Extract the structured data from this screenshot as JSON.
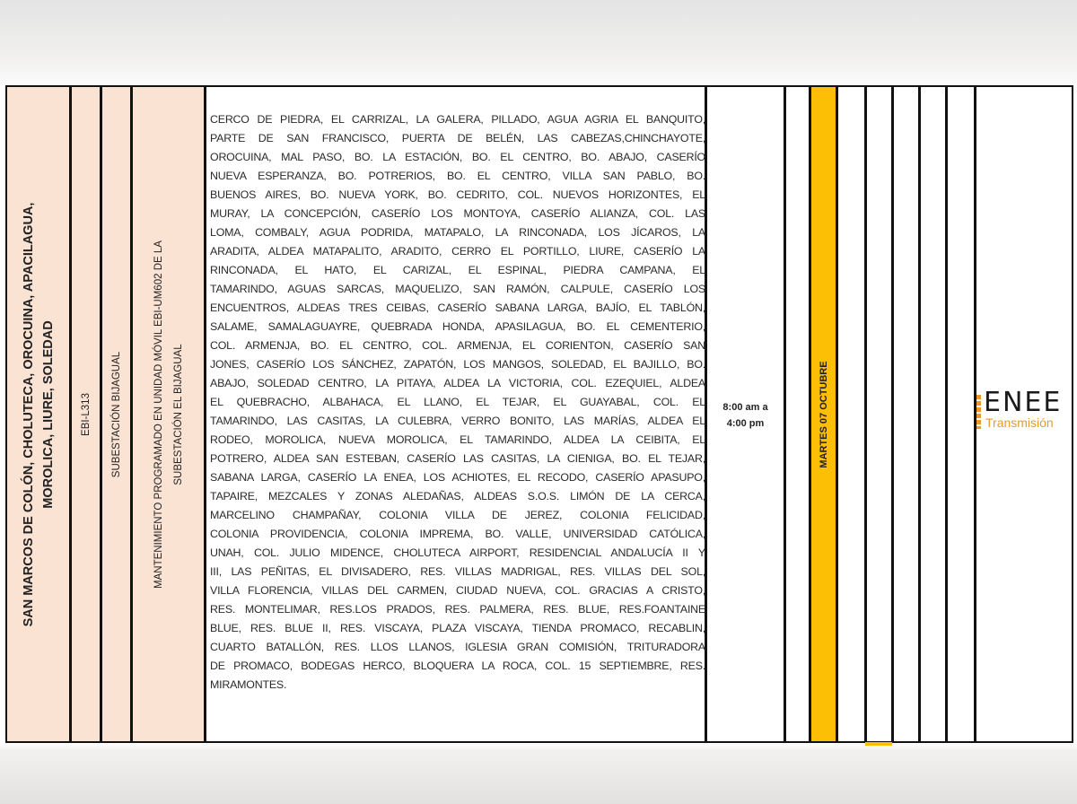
{
  "row": {
    "sectors": [
      "SAN MARCOS DE COLÓN, CHOLUTECA, OROCUINA, APACILAGUA,",
      "MOROLICA, LIURE, SOLEDAD"
    ],
    "circuit": "EBI-L313",
    "substation": "SUBESTACIÓN BIJAGUAL",
    "reason": [
      "MANTENIMIENTO PROGRAMADO EN UNIDAD MÓVIL EBI-UM602 DE LA",
      "SUBESTACIÓN EL BIJAGUAL"
    ],
    "areas_lines": [
      "CERCO DE PIEDRA, EL CARRIZAL, LA GALERA, PILLADO, AGUA AGRIA EL BANQUITO,",
      "PARTE DE SAN FRANCISCO, PUERTA DE BELÉN, LAS CABEZAS,CHINCHAYOTE,",
      "OROCUINA, MAL PASO, BO. LA ESTACIÓN, BO. EL CENTRO, BO. ABAJO, CASERÍO",
      "NUEVA ESPERANZA, BO. POTRERIOS, BO. EL CENTRO, VILLA SAN PABLO, BO.",
      "BUENOS AIRES, BO. NUEVA YORK, BO. CEDRITO, COL. NUEVOS HORIZONTES, EL",
      "MURAY, LA CONCEPCIÓN, CASERÍO LOS MONTOYA, CASERÍO ALIANZA, COL. LAS",
      "LOMA, COMBALY, AGUA PODRIDA, MATAPALO, LA RINCONADA, LOS JÍCAROS, LA",
      "ARADITA, ALDEA MATAPALITO, ARADITO, CERRO EL PORTILLO, LIURE, CASERÍO LA",
      "RINCONADA, EL HATO, EL CARIZAL, EL ESPINAL, PIEDRA CAMPANA, EL",
      "TAMARINDO, AGUAS SARCAS, MAQUELIZO, SAN RAMÓN, CALPULE, CASERÍO LOS",
      "ENCUENTROS, ALDEAS TRES CEIBAS, CASERÍO SABANA LARGA, BAJÍO, EL TABLÓN,",
      "SALAME, SAMALAGUAYRE, QUEBRADA HONDA, APASILAGUA, BO. EL CEMENTERIO,",
      "COL. ARMENJA, BO. EL CENTRO, COL. ARMENJA, EL CORIENTON, CASERÍO SAN",
      "JONES, CASERÍO LOS SÁNCHEZ, ZAPATÓN, LOS MANGOS, SOLEDAD, EL BAJILLO, BO.",
      "ABAJO, SOLEDAD CENTRO, LA PITAYA, ALDEA LA VICTORIA, COL. EZEQUIEL, ALDEA",
      "EL QUEBRACHO, ALBAHACA, EL LLANO, EL TEJAR, EL GUAYABAL, COL. EL",
      "TAMARINDO, LAS CASITAS, LA CULEBRA, VERRO BONITO, LAS MARÍAS, ALDEA EL",
      "RODEO, MOROLICA, NUEVA MOROLICA, EL TAMARINDO, ALDEA LA CEIBITA, EL",
      "POTRERO, ALDEA SAN ESTEBAN, CASERÍO LAS CASITAS, LA CIENIGA, BO. EL TEJAR,",
      "SABANA LARGA, CASERÍO LA ENEA, LOS ACHIOTES, EL RECODO, CASERÍO APASUPO,",
      "TAPAIRE, MEZCALES Y ZONAS ALEDAÑAS, ALDEAS S.O.S. LIMÓN DE LA CERCA,",
      "MARCELINO CHAMPAÑAY, COLONIA VILLA DE JEREZ, COLONIA FELICIDAD,",
      "COLONIA PROVIDENCIA, COLONIA IMPREMA, BO. VALLE, UNIVERSIDAD CATÓLICA,",
      "UNAH, COL. JULIO MIDENCE, CHOLUTECA AIRPORT, RESIDENCIAL ANDALUCÍA II Y",
      "III, LAS PEÑITAS, EL DIVISADERO, RES. VILLAS MADRIGAL, RES. VILLAS DEL SOL,",
      "VILLA FLORENCIA, VILLAS DEL CARMEN, CIUDAD NUEVA, COL. GRACIAS A CRISTO,",
      "RES. MONTELIMAR, RES.LOS PRADOS, RES. PALMERA, RES. BLUE, RES.FOANTAINE",
      "BLUE, RES. BLUE II, RES. VISCAYA, PLAZA VISCAYA, TIENDA PROMACO, RECABLIN,",
      "CUARTO BATALLÓN, RES. LLOS LLANOS, IGLESIA GRAN COMISIÓN, TRITURADORA",
      "DE PROMACO, BODEGAS HERCO, BLOQUERA LA ROCA, COL. 15 SEPTIEMBRE, RES.",
      "MIRAMONTES."
    ],
    "time": [
      "8:00 am a",
      "4:00 pm"
    ],
    "date": "MARTES 07 OCTUBRE",
    "logo": {
      "name": "ENEE",
      "subtitle": "Transmisión"
    }
  },
  "colors": {
    "peach": "#fbe3d4",
    "highlight": "#fdbf06",
    "logo_orange": "#e89a2a"
  }
}
